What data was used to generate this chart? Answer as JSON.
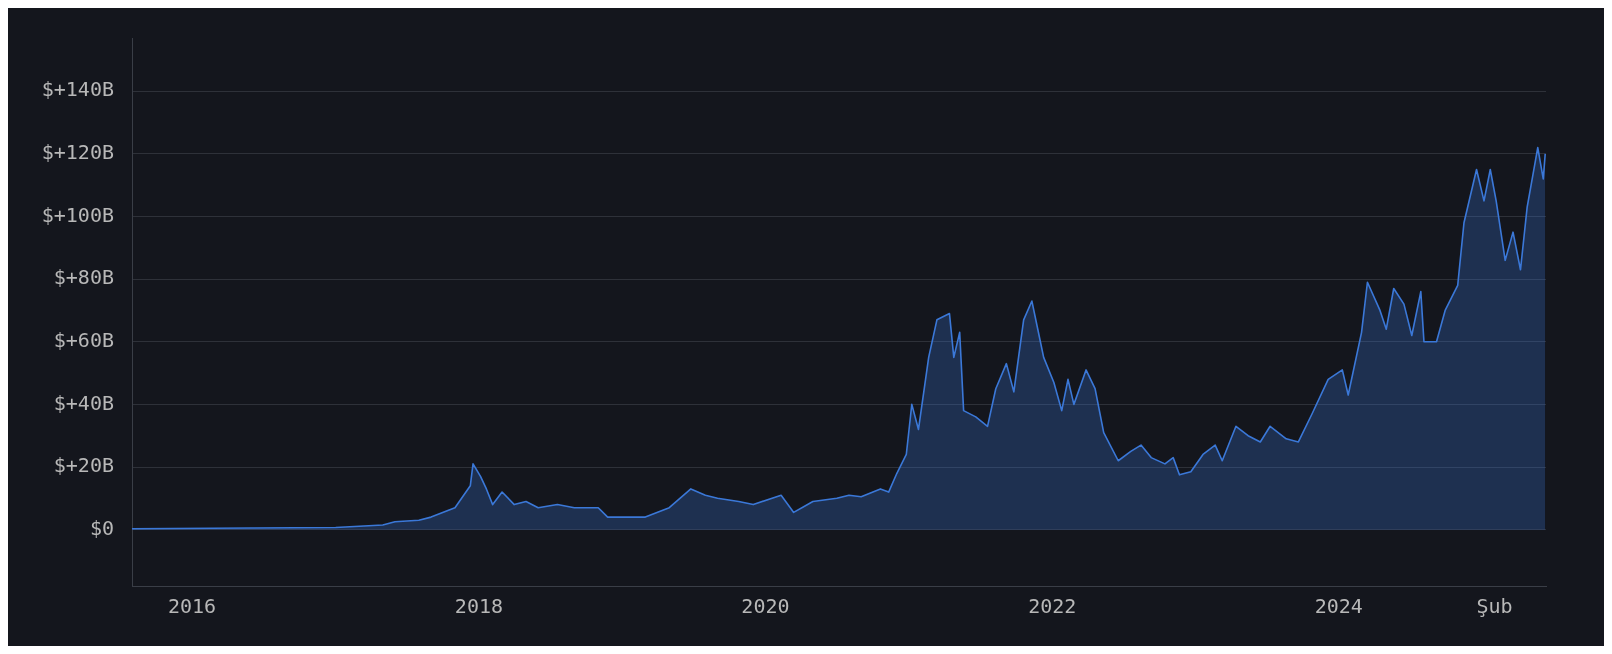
{
  "chart_data": {
    "type": "area",
    "ylim": [
      -18,
      157
    ],
    "yticks": [
      {
        "value": 0,
        "label": "$0"
      },
      {
        "value": 20,
        "label": "$+20B"
      },
      {
        "value": 40,
        "label": "$+40B"
      },
      {
        "value": 60,
        "label": "$+60B"
      },
      {
        "value": 80,
        "label": "$+80B"
      },
      {
        "value": 100,
        "label": "$+100B"
      },
      {
        "value": 120,
        "label": "$+120B"
      },
      {
        "value": 140,
        "label": "$+140B"
      }
    ],
    "xlim": [
      "2015-08-01",
      "2025-06-12"
    ],
    "xticks": [
      "2016",
      "2018",
      "2020",
      "2022",
      "2024",
      {
        "value": "2025-02",
        "label": "Şub"
      }
    ],
    "grid": "y",
    "legend": false,
    "marker": "none",
    "series": [
      {
        "color": "#3b78d8",
        "x": [
          "2015-08-01",
          "2016-06-01",
          "2017-01-01",
          "2017-05-01",
          "2017-06-01",
          "2017-08-01",
          "2017-09-01",
          "2017-11-01",
          "2017-12-10",
          "2017-12-17",
          "2018-01-05",
          "2018-01-20",
          "2018-02-05",
          "2018-03-01",
          "2018-04-01",
          "2018-05-01",
          "2018-06-01",
          "2018-07-20",
          "2018-09-01",
          "2018-11-01",
          "2018-11-25",
          "2019-01-01",
          "2019-03-01",
          "2019-05-01",
          "2019-06-25",
          "2019-08-01",
          "2019-09-01",
          "2019-10-25",
          "2019-12-01",
          "2020-02-10",
          "2020-03-13",
          "2020-05-01",
          "2020-07-01",
          "2020-08-01",
          "2020-09-01",
          "2020-10-20",
          "2020-11-10",
          "2020-12-01",
          "2020-12-25",
          "2021-01-08",
          "2021-01-25",
          "2021-02-20",
          "2021-03-13",
          "2021-04-14",
          "2021-04-25",
          "2021-05-10",
          "2021-05-20",
          "2021-06-20",
          "2021-07-20",
          "2021-08-10",
          "2021-09-06",
          "2021-09-25",
          "2021-10-20",
          "2021-11-10",
          "2021-11-25",
          "2021-12-10",
          "2022-01-05",
          "2022-01-25",
          "2022-02-10",
          "2022-02-25",
          "2022-03-28",
          "2022-04-20",
          "2022-05-12",
          "2022-06-18",
          "2022-07-20",
          "2022-08-15",
          "2022-09-10",
          "2022-10-15",
          "2022-11-05",
          "2022-11-21",
          "2022-12-20",
          "2023-01-20",
          "2023-02-20",
          "2023-03-10",
          "2023-04-14",
          "2023-05-15",
          "2023-06-15",
          "2023-07-10",
          "2023-08-20",
          "2023-09-20",
          "2023-10-25",
          "2023-12-05",
          "2024-01-10",
          "2024-01-25",
          "2024-02-28",
          "2024-03-14",
          "2024-04-15",
          "2024-05-01",
          "2024-05-20",
          "2024-06-15",
          "2024-07-05",
          "2024-07-28",
          "2024-08-05",
          "2024-09-06",
          "2024-09-28",
          "2024-10-30",
          "2024-11-15",
          "2024-12-17",
          "2025-01-05",
          "2025-01-21",
          "2025-02-05",
          "2025-02-28",
          "2025-03-20",
          "2025-04-08",
          "2025-04-25",
          "2025-05-22",
          "2025-06-05",
          "2025-06-10"
        ],
        "values": [
          0.3,
          0.5,
          0.7,
          1.5,
          2.5,
          3,
          4,
          7,
          14,
          21,
          17,
          13,
          8,
          12,
          8,
          9,
          7,
          8,
          7,
          7,
          4,
          4,
          4,
          7,
          13,
          11,
          10,
          9,
          8,
          11,
          5.5,
          9,
          10,
          11,
          10.5,
          13,
          12,
          18,
          24,
          40,
          32,
          55,
          67,
          69,
          55,
          63,
          38,
          36,
          33,
          45,
          53,
          44,
          67,
          73,
          64,
          55,
          47,
          38,
          48,
          40,
          51,
          45,
          31,
          22,
          25,
          27,
          23,
          21,
          23,
          17.5,
          18.5,
          24,
          27,
          22,
          33,
          30,
          28,
          33,
          29,
          28,
          37,
          48,
          51,
          43,
          63,
          79,
          70,
          64,
          77,
          72,
          62,
          76,
          60,
          60,
          70,
          78,
          98,
          115,
          105,
          115,
          105,
          86,
          95,
          83,
          103,
          122,
          112,
          120
        ]
      }
    ]
  }
}
